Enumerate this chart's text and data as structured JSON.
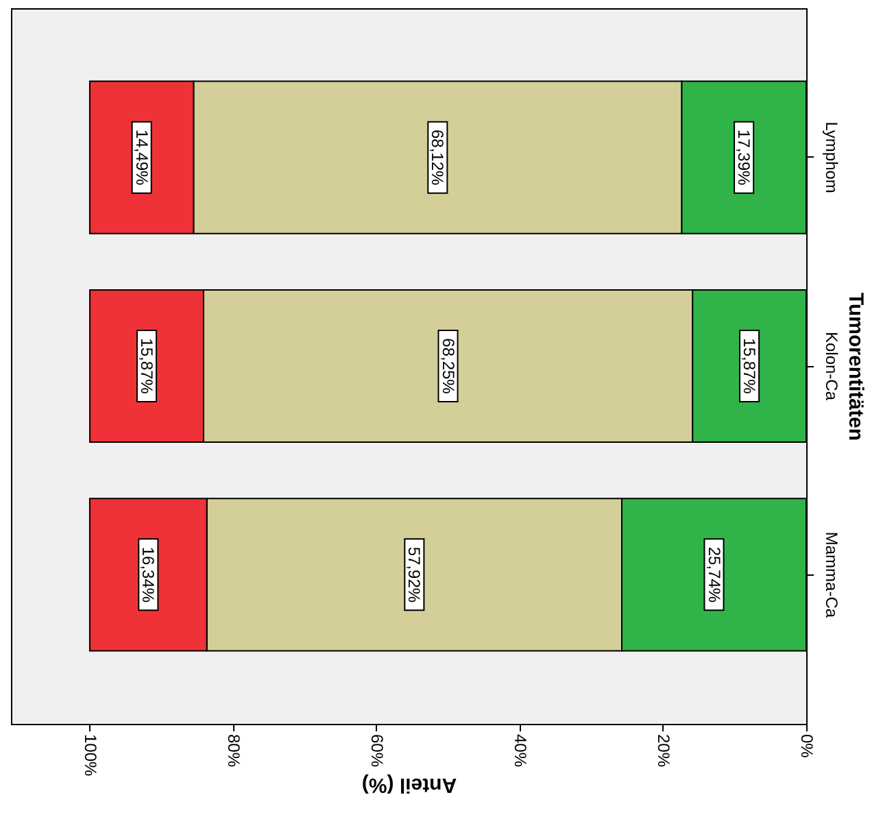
{
  "chart_data": {
    "type": "bar",
    "orientation": "horizontal",
    "stacked": true,
    "xlabel": "Anteil (%)",
    "ylabel": "Tumorentitäten",
    "categories": [
      "Lymphom",
      "Kolon-Ca",
      "Mamma-Ca"
    ],
    "series": [
      {
        "color": "#30b44a",
        "values": [
          17.39,
          15.87,
          25.74
        ],
        "value_labels": [
          "17,39%",
          "15,87%",
          "25,74%"
        ]
      },
      {
        "color": "#d4ce98",
        "values": [
          68.12,
          68.25,
          57.92
        ],
        "value_labels": [
          "68,12%",
          "68,25%",
          "57,92%"
        ]
      },
      {
        "color": "#ee3237",
        "values": [
          14.49,
          15.87,
          16.34
        ],
        "value_labels": [
          "14,49%",
          "15,87%",
          "16,34%"
        ]
      }
    ],
    "xlim": [
      111,
      0
    ],
    "xticks": [
      {
        "value": 0,
        "label": "0%"
      },
      {
        "value": 20,
        "label": "20%"
      },
      {
        "value": 40,
        "label": "40%"
      },
      {
        "value": 60,
        "label": "60%"
      },
      {
        "value": 80,
        "label": "80%"
      },
      {
        "value": 100,
        "label": "100%"
      }
    ],
    "grid": false
  }
}
